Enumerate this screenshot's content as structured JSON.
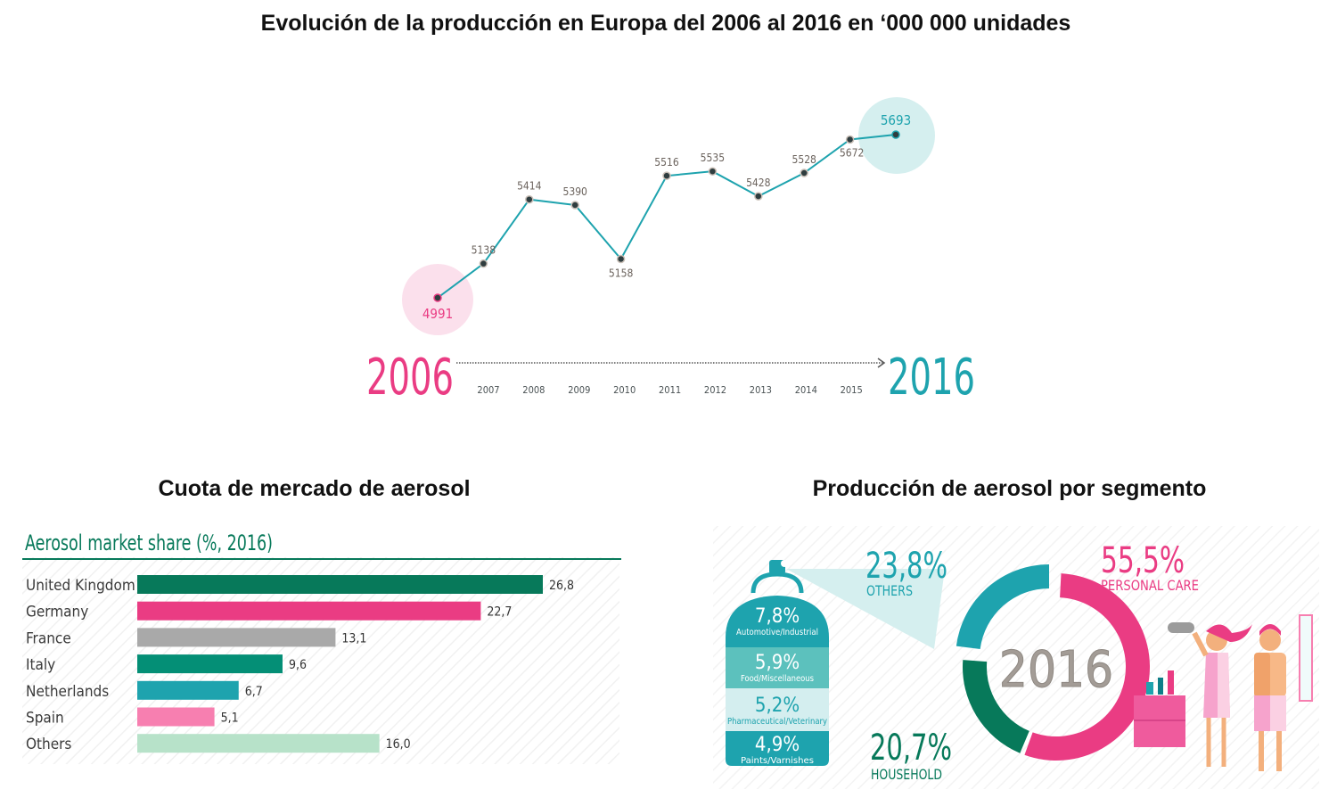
{
  "headings": {
    "main": "Evolución de la producción en Europa del 2006 al 2016 en ‘000 000 unidades",
    "left": "Cuota de mercado de aerosol",
    "right": "Producción de aerosol por segmento"
  },
  "colors": {
    "pink": "#ea3c83",
    "teal": "#1ea3ae",
    "dark_green": "#07795a",
    "green": "#048f76",
    "gray": "#a9a9a9",
    "light_pink": "#f77fb0",
    "mint": "#b7e2c9",
    "point": "#2f3d3f"
  },
  "chart_data": [
    {
      "type": "line",
      "title": "Evolución de la producción en Europa del 2006 al 2016 en ‘000 000 unidades",
      "x": [
        "2006",
        "2007",
        "2008",
        "2009",
        "2010",
        "2011",
        "2012",
        "2013",
        "2014",
        "2015",
        "2016"
      ],
      "values": [
        4991,
        5138,
        5414,
        5390,
        5158,
        5516,
        5535,
        5428,
        5528,
        5672,
        5693
      ],
      "start_label": "2006",
      "end_label": "2016",
      "xlabel": "",
      "ylabel": "",
      "ylim": [
        4900,
        5750
      ],
      "grid": false
    },
    {
      "type": "bar",
      "orientation": "horizontal",
      "title": "Aerosol market share (%, 2016)",
      "categories": [
        "United Kingdom",
        "Germany",
        "France",
        "Italy",
        "Netherlands",
        "Spain",
        "Others"
      ],
      "values": [
        26.8,
        22.7,
        13.1,
        9.6,
        6.7,
        5.1,
        16.0
      ],
      "value_labels": [
        "26,8",
        "22,7",
        "13,1",
        "9,6",
        "6,7",
        "5,1",
        "16,0"
      ],
      "bar_colors": [
        "#07795a",
        "#ea3c83",
        "#a9a9a9",
        "#048f76",
        "#1ea3ae",
        "#f77fb0",
        "#b7e2c9"
      ],
      "xlim": [
        0,
        30
      ]
    },
    {
      "type": "pie",
      "style": "donut",
      "center_label": "2016",
      "slices": [
        {
          "label": "PERSONAL CARE",
          "value": 55.5,
          "text": "55,5%",
          "color": "#ea3c83"
        },
        {
          "label": "HOUSEHOLD",
          "value": 20.7,
          "text": "20,7%",
          "color": "#07795a"
        },
        {
          "label": "OTHERS",
          "value": 23.8,
          "text": "23,8%",
          "color": "#1ea3ae"
        }
      ],
      "others_breakdown": [
        {
          "value": 7.8,
          "text": "7,8%",
          "label": "Automotive/Industrial"
        },
        {
          "value": 5.9,
          "text": "5,9%",
          "label": "Food/Miscellaneous"
        },
        {
          "value": 5.2,
          "text": "5,2%",
          "label": "Pharmaceutical/Veterinary"
        },
        {
          "value": 4.9,
          "text": "4,9%",
          "label": "Paints/Varnishes"
        }
      ]
    }
  ]
}
